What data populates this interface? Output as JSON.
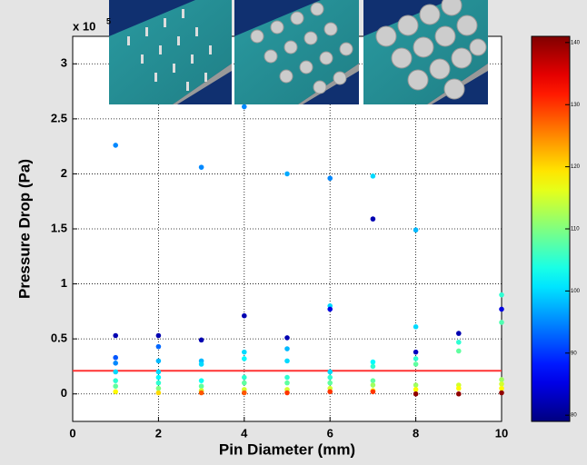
{
  "chart_data": {
    "type": "scatter",
    "x_label": "Pin Diameter (mm)",
    "y_label": "Pressure Drop (Pa)",
    "y_scale_base": "x 10",
    "y_scale_exponent": "5",
    "x": [
      1,
      1,
      1,
      1,
      1,
      1,
      1,
      1,
      2,
      2,
      2,
      2,
      2,
      2,
      2,
      2,
      3,
      3,
      3,
      3,
      3,
      3,
      3,
      3,
      4,
      4,
      4,
      4,
      4,
      4,
      4,
      4,
      5,
      5,
      5,
      5,
      5,
      5,
      5,
      5,
      6,
      6,
      6,
      6,
      6,
      6,
      6,
      6,
      7,
      7,
      7,
      7,
      7,
      7,
      7,
      7,
      8,
      8,
      8,
      8,
      8,
      8,
      8,
      8,
      9,
      9,
      9,
      9,
      9,
      9,
      10,
      10,
      10,
      10,
      10,
      10,
      10
    ],
    "y": [
      2.26,
      0.53,
      0.33,
      0.28,
      0.2,
      0.12,
      0.07,
      0.02,
      0.53,
      0.43,
      0.3,
      0.2,
      0.15,
      0.1,
      0.05,
      0.01,
      2.06,
      0.49,
      0.3,
      0.27,
      0.12,
      0.07,
      0.03,
      0.01,
      2.61,
      0.71,
      0.38,
      0.32,
      0.15,
      0.1,
      0.04,
      0.01,
      2.0,
      0.51,
      0.41,
      0.3,
      0.15,
      0.1,
      0.04,
      0.01,
      1.96,
      0.8,
      0.77,
      0.2,
      0.15,
      0.1,
      0.05,
      0.02,
      1.98,
      1.59,
      0.29,
      0.25,
      0.12,
      0.08,
      0.03,
      0.02,
      1.49,
      0.61,
      0.38,
      0.32,
      0.27,
      0.08,
      0.04,
      0.0,
      0.55,
      0.47,
      0.39,
      0.08,
      0.05,
      0.0,
      0.9,
      0.77,
      0.65,
      0.13,
      0.09,
      0.05,
      0.01
    ],
    "c": [
      95,
      82,
      92,
      95,
      100,
      105,
      108,
      118,
      82,
      93,
      98,
      100,
      102,
      105,
      110,
      120,
      95,
      82,
      98,
      100,
      103,
      108,
      115,
      128,
      95,
      82,
      100,
      102,
      105,
      108,
      115,
      128,
      97,
      82,
      98,
      100,
      105,
      108,
      115,
      130,
      95,
      100,
      85,
      100,
      105,
      108,
      115,
      130,
      100,
      82,
      102,
      105,
      108,
      112,
      118,
      130,
      98,
      100,
      83,
      105,
      108,
      112,
      118,
      140,
      82,
      105,
      108,
      115,
      118,
      140,
      105,
      85,
      107,
      112,
      115,
      118,
      140
    ],
    "reference_line": 0.21,
    "reference_color": "#ff3333",
    "xlim": [
      0,
      10
    ],
    "xticks": [
      0,
      2,
      4,
      6,
      8,
      10
    ],
    "ylim": [
      -0.25,
      3.25
    ],
    "yticks": [
      0,
      0.5,
      1,
      1.5,
      2,
      2.5,
      3
    ],
    "clim": [
      79,
      141
    ],
    "cticks": [
      80,
      90,
      100,
      110,
      120,
      130,
      140
    ],
    "colormap": "jet",
    "grid": true
  }
}
